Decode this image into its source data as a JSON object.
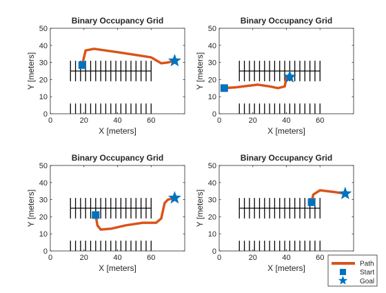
{
  "colors": {
    "path": "#D95319",
    "marker": "#0072BD",
    "map": "#000000",
    "axes": "#262626"
  },
  "legend": {
    "placement": "bottom-right",
    "entries": [
      {
        "label": "Path",
        "kind": "line"
      },
      {
        "label": "Start",
        "kind": "square"
      },
      {
        "label": "Goal",
        "kind": "star"
      }
    ]
  },
  "chart_data": [
    {
      "type": "line",
      "title": "Binary Occupancy Grid",
      "xlabel": "X [meters]",
      "ylabel": "Y [meters]",
      "xlim": [
        0,
        80
      ],
      "ylim": [
        0,
        50
      ],
      "xticks": [
        0,
        20,
        40,
        60
      ],
      "yticks": [
        0,
        10,
        20,
        30,
        40,
        50
      ],
      "start": {
        "x": 19,
        "y": 28.5
      },
      "goal": {
        "x": 74,
        "y": 31
      },
      "path": [
        {
          "x": 19,
          "y": 28.5
        },
        {
          "x": 20,
          "y": 33
        },
        {
          "x": 21,
          "y": 37
        },
        {
          "x": 26,
          "y": 38
        },
        {
          "x": 40,
          "y": 36
        },
        {
          "x": 50,
          "y": 34.5
        },
        {
          "x": 60,
          "y": 33
        },
        {
          "x": 66,
          "y": 29.5
        },
        {
          "x": 70,
          "y": 30
        },
        {
          "x": 74,
          "y": 31
        }
      ]
    },
    {
      "type": "line",
      "title": "Binary Occupancy Grid",
      "xlabel": "X [meters]",
      "ylabel": "Y [meters]",
      "xlim": [
        0,
        80
      ],
      "ylim": [
        0,
        50
      ],
      "xticks": [
        0,
        20,
        40,
        60
      ],
      "yticks": [
        0,
        10,
        20,
        30,
        40,
        50
      ],
      "start": {
        "x": 3,
        "y": 15
      },
      "goal": {
        "x": 42,
        "y": 21.5
      },
      "path": [
        {
          "x": 3,
          "y": 15
        },
        {
          "x": 10,
          "y": 15.5
        },
        {
          "x": 23,
          "y": 17
        },
        {
          "x": 30,
          "y": 16
        },
        {
          "x": 35,
          "y": 15
        },
        {
          "x": 39,
          "y": 16
        },
        {
          "x": 40,
          "y": 21
        },
        {
          "x": 42,
          "y": 21.5
        }
      ]
    },
    {
      "type": "line",
      "title": "Binary Occupancy Grid",
      "xlabel": "X [meters]",
      "ylabel": "Y [meters]",
      "xlim": [
        0,
        80
      ],
      "ylim": [
        0,
        50
      ],
      "xticks": [
        0,
        20,
        40,
        60
      ],
      "yticks": [
        0,
        10,
        20,
        30,
        40,
        50
      ],
      "start": {
        "x": 27,
        "y": 21
      },
      "goal": {
        "x": 74,
        "y": 31
      },
      "path": [
        {
          "x": 27,
          "y": 21
        },
        {
          "x": 28,
          "y": 15
        },
        {
          "x": 30,
          "y": 12.5
        },
        {
          "x": 36,
          "y": 13
        },
        {
          "x": 45,
          "y": 15
        },
        {
          "x": 55,
          "y": 16.5
        },
        {
          "x": 63,
          "y": 16.5
        },
        {
          "x": 66,
          "y": 19
        },
        {
          "x": 68,
          "y": 28
        },
        {
          "x": 70,
          "y": 30
        },
        {
          "x": 74,
          "y": 31
        }
      ]
    },
    {
      "type": "line",
      "title": "Binary Occupancy Grid",
      "xlabel": "X [meters]",
      "ylabel": "Y [meters]",
      "xlim": [
        0,
        80
      ],
      "ylim": [
        0,
        50
      ],
      "xticks": [
        0,
        20,
        40,
        60
      ],
      "yticks": [
        0,
        10,
        20,
        30,
        40,
        50
      ],
      "start": {
        "x": 55,
        "y": 28.5
      },
      "goal": {
        "x": 75,
        "y": 33.5
      },
      "path": [
        {
          "x": 55,
          "y": 28.5
        },
        {
          "x": 56,
          "y": 33
        },
        {
          "x": 60,
          "y": 35.5
        },
        {
          "x": 68,
          "y": 34.5
        },
        {
          "x": 75,
          "y": 33.5
        }
      ]
    }
  ]
}
